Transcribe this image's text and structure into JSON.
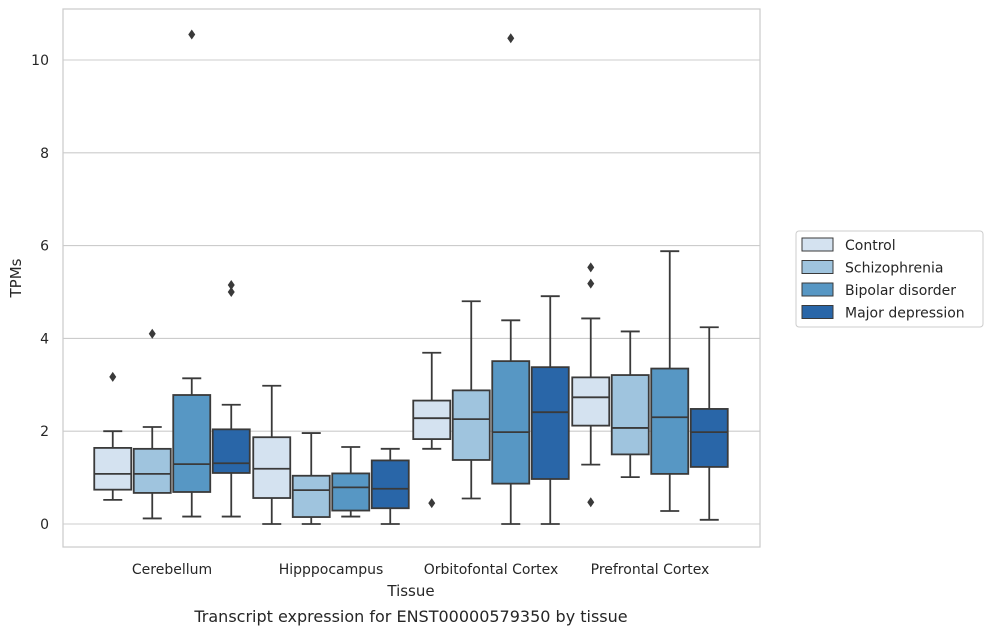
{
  "caption": "Transcript expression for ENST00000579350 by tissue",
  "chart_data": {
    "type": "box",
    "xlabel": "Tissue",
    "ylabel": "TPMs",
    "ylim": [
      -0.5,
      11.1
    ],
    "yticks": [
      0,
      2,
      4,
      6,
      8,
      10
    ],
    "grid": "horizontal",
    "legend_position": "right",
    "categories": [
      "Cerebellum",
      "Hipppocampus",
      "Orbitofontal Cortex",
      "Prefrontal Cortex"
    ],
    "series": [
      {
        "name": "Control",
        "color": "#d4e2f0",
        "boxes": [
          {
            "min": 0.52,
            "q1": 0.74,
            "median": 1.08,
            "q3": 1.64,
            "max": 2.0,
            "outliers": [
              3.17
            ]
          },
          {
            "min": 0.0,
            "q1": 0.56,
            "median": 1.19,
            "q3": 1.87,
            "max": 2.98,
            "outliers": []
          },
          {
            "min": 1.62,
            "q1": 1.83,
            "median": 2.28,
            "q3": 2.66,
            "max": 3.69,
            "outliers": [
              0.45
            ]
          },
          {
            "min": 1.28,
            "q1": 2.12,
            "median": 2.73,
            "q3": 3.16,
            "max": 4.43,
            "outliers": [
              5.18,
              5.53,
              0.47
            ]
          }
        ]
      },
      {
        "name": "Schizophrenia",
        "color": "#9fc4de",
        "boxes": [
          {
            "min": 0.12,
            "q1": 0.67,
            "median": 1.08,
            "q3": 1.62,
            "max": 2.09,
            "outliers": [
              4.1
            ]
          },
          {
            "min": 0.0,
            "q1": 0.15,
            "median": 0.73,
            "q3": 1.04,
            "max": 1.96,
            "outliers": []
          },
          {
            "min": 0.55,
            "q1": 1.38,
            "median": 2.26,
            "q3": 2.88,
            "max": 4.8,
            "outliers": []
          },
          {
            "min": 1.01,
            "q1": 1.5,
            "median": 2.07,
            "q3": 3.21,
            "max": 4.15,
            "outliers": []
          }
        ]
      },
      {
        "name": "Bipolar disorder",
        "color": "#5797c4",
        "boxes": [
          {
            "min": 0.16,
            "q1": 0.69,
            "median": 1.29,
            "q3": 2.78,
            "max": 3.14,
            "outliers": [
              10.55
            ]
          },
          {
            "min": 0.16,
            "q1": 0.29,
            "median": 0.79,
            "q3": 1.09,
            "max": 1.66,
            "outliers": []
          },
          {
            "min": 0.0,
            "q1": 0.87,
            "median": 1.98,
            "q3": 3.51,
            "max": 4.39,
            "outliers": [
              10.47
            ]
          },
          {
            "min": 0.28,
            "q1": 1.08,
            "median": 2.3,
            "q3": 3.35,
            "max": 5.88,
            "outliers": []
          }
        ]
      },
      {
        "name": "Major depression",
        "color": "#2966a8",
        "boxes": [
          {
            "min": 0.16,
            "q1": 1.1,
            "median": 1.31,
            "q3": 2.04,
            "max": 2.57,
            "outliers": [
              5.0,
              5.15
            ]
          },
          {
            "min": 0.0,
            "q1": 0.34,
            "median": 0.76,
            "q3": 1.37,
            "max": 1.62,
            "outliers": []
          },
          {
            "min": 0.0,
            "q1": 0.97,
            "median": 2.41,
            "q3": 3.38,
            "max": 4.91,
            "outliers": []
          },
          {
            "min": 0.09,
            "q1": 1.23,
            "median": 1.98,
            "q3": 2.48,
            "max": 4.24,
            "outliers": []
          }
        ]
      }
    ]
  }
}
